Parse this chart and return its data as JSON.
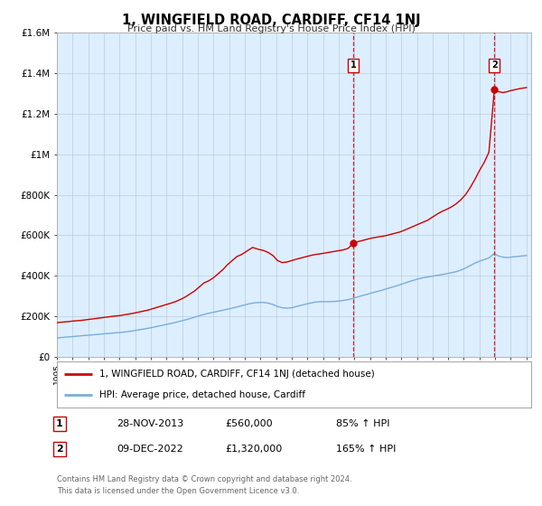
{
  "title": "1, WINGFIELD ROAD, CARDIFF, CF14 1NJ",
  "subtitle": "Price paid vs. HM Land Registry's House Price Index (HPI)",
  "legend_line1": "1, WINGFIELD ROAD, CARDIFF, CF14 1NJ (detached house)",
  "legend_line2": "HPI: Average price, detached house, Cardiff",
  "footer1": "Contains HM Land Registry data © Crown copyright and database right 2024.",
  "footer2": "This data is licensed under the Open Government Licence v3.0.",
  "sale1_date": "28-NOV-2013",
  "sale1_price": "£560,000",
  "sale1_hpi": "85% ↑ HPI",
  "sale1_year": 2013.92,
  "sale1_value": 560000,
  "sale2_date": "09-DEC-2022",
  "sale2_price": "£1,320,000",
  "sale2_hpi": "165% ↑ HPI",
  "sale2_year": 2022.95,
  "sale2_value": 1320000,
  "red_line_color": "#cc0000",
  "blue_line_color": "#7aadd9",
  "bg_color": "#ddeeff",
  "grid_color": "#bbccdd",
  "ylim": [
    0,
    1600000
  ],
  "xlim_start": 1995.0,
  "xlim_end": 2025.3,
  "red_x": [
    1995.0,
    1995.2,
    1995.5,
    1995.8,
    1996.0,
    1996.3,
    1996.6,
    1996.9,
    1997.2,
    1997.5,
    1997.8,
    1998.1,
    1998.4,
    1998.7,
    1999.0,
    1999.3,
    1999.6,
    1999.9,
    2000.2,
    2000.5,
    2000.8,
    2001.1,
    2001.4,
    2001.7,
    2002.0,
    2002.3,
    2002.6,
    2002.9,
    2003.2,
    2003.5,
    2003.8,
    2004.1,
    2004.4,
    2004.7,
    2005.0,
    2005.3,
    2005.6,
    2005.9,
    2006.2,
    2006.5,
    2006.8,
    2007.1,
    2007.4,
    2007.5,
    2007.7,
    2007.9,
    2008.2,
    2008.5,
    2008.8,
    2009.1,
    2009.4,
    2009.7,
    2010.0,
    2010.3,
    2010.6,
    2010.9,
    2011.2,
    2011.5,
    2011.8,
    2012.1,
    2012.4,
    2012.7,
    2013.0,
    2013.3,
    2013.6,
    2013.92,
    2014.2,
    2014.5,
    2014.8,
    2015.1,
    2015.4,
    2015.7,
    2016.0,
    2016.3,
    2016.6,
    2016.9,
    2017.2,
    2017.5,
    2017.8,
    2018.1,
    2018.4,
    2018.7,
    2019.0,
    2019.3,
    2019.6,
    2019.9,
    2020.2,
    2020.5,
    2020.8,
    2021.1,
    2021.4,
    2021.7,
    2022.0,
    2022.3,
    2022.6,
    2022.95,
    2023.2,
    2023.5,
    2023.8,
    2024.0,
    2024.3,
    2024.6,
    2025.0
  ],
  "red_y": [
    168000,
    170000,
    172000,
    174000,
    176000,
    178000,
    180000,
    183000,
    186000,
    189000,
    192000,
    195000,
    198000,
    201000,
    203000,
    207000,
    211000,
    215000,
    220000,
    225000,
    230000,
    237000,
    244000,
    251000,
    258000,
    265000,
    273000,
    283000,
    295000,
    310000,
    325000,
    345000,
    365000,
    375000,
    390000,
    410000,
    430000,
    455000,
    475000,
    495000,
    505000,
    520000,
    535000,
    540000,
    535000,
    530000,
    525000,
    515000,
    500000,
    475000,
    465000,
    468000,
    475000,
    482000,
    488000,
    494000,
    500000,
    505000,
    508000,
    512000,
    516000,
    520000,
    524000,
    528000,
    535000,
    560000,
    568000,
    574000,
    580000,
    586000,
    590000,
    594000,
    598000,
    604000,
    610000,
    616000,
    625000,
    635000,
    645000,
    655000,
    665000,
    675000,
    690000,
    705000,
    718000,
    728000,
    740000,
    755000,
    775000,
    800000,
    835000,
    875000,
    920000,
    960000,
    1010000,
    1320000,
    1310000,
    1305000,
    1310000,
    1315000,
    1320000,
    1325000,
    1330000
  ],
  "blue_x": [
    1995.0,
    1995.3,
    1995.6,
    1995.9,
    1996.2,
    1996.5,
    1996.8,
    1997.1,
    1997.4,
    1997.7,
    1998.0,
    1998.3,
    1998.6,
    1998.9,
    1999.2,
    1999.5,
    1999.8,
    2000.1,
    2000.4,
    2000.7,
    2001.0,
    2001.3,
    2001.6,
    2001.9,
    2002.2,
    2002.5,
    2002.8,
    2003.1,
    2003.4,
    2003.7,
    2004.0,
    2004.3,
    2004.6,
    2004.9,
    2005.2,
    2005.5,
    2005.8,
    2006.1,
    2006.4,
    2006.7,
    2007.0,
    2007.3,
    2007.6,
    2007.9,
    2008.2,
    2008.5,
    2008.8,
    2009.1,
    2009.4,
    2009.7,
    2010.0,
    2010.3,
    2010.6,
    2010.9,
    2011.2,
    2011.5,
    2011.8,
    2012.1,
    2012.4,
    2012.7,
    2013.0,
    2013.3,
    2013.6,
    2013.9,
    2014.2,
    2014.5,
    2014.8,
    2015.1,
    2015.4,
    2015.7,
    2016.0,
    2016.3,
    2016.6,
    2016.9,
    2017.2,
    2017.5,
    2017.8,
    2018.1,
    2018.4,
    2018.7,
    2019.0,
    2019.3,
    2019.6,
    2019.9,
    2020.2,
    2020.5,
    2020.8,
    2021.1,
    2021.4,
    2021.7,
    2022.0,
    2022.3,
    2022.6,
    2022.95,
    2023.2,
    2023.5,
    2023.8,
    2024.0,
    2024.5,
    2025.0
  ],
  "blue_y": [
    93000,
    95000,
    97000,
    99000,
    101000,
    103000,
    105000,
    107000,
    109000,
    111000,
    113000,
    115000,
    117000,
    119000,
    121000,
    124000,
    127000,
    131000,
    135000,
    139000,
    143000,
    148000,
    153000,
    158000,
    163000,
    168000,
    174000,
    180000,
    186000,
    193000,
    200000,
    207000,
    213000,
    218000,
    223000,
    228000,
    233000,
    238000,
    244000,
    250000,
    256000,
    262000,
    266000,
    268000,
    268000,
    265000,
    258000,
    248000,
    242000,
    240000,
    242000,
    248000,
    254000,
    260000,
    265000,
    270000,
    272000,
    272000,
    272000,
    273000,
    275000,
    278000,
    282000,
    288000,
    295000,
    302000,
    308000,
    315000,
    321000,
    327000,
    334000,
    341000,
    348000,
    355000,
    363000,
    371000,
    378000,
    385000,
    390000,
    394000,
    398000,
    402000,
    406000,
    410000,
    415000,
    420000,
    428000,
    438000,
    450000,
    462000,
    472000,
    480000,
    488000,
    510000,
    498000,
    492000,
    490000,
    492000,
    496000,
    500000
  ]
}
